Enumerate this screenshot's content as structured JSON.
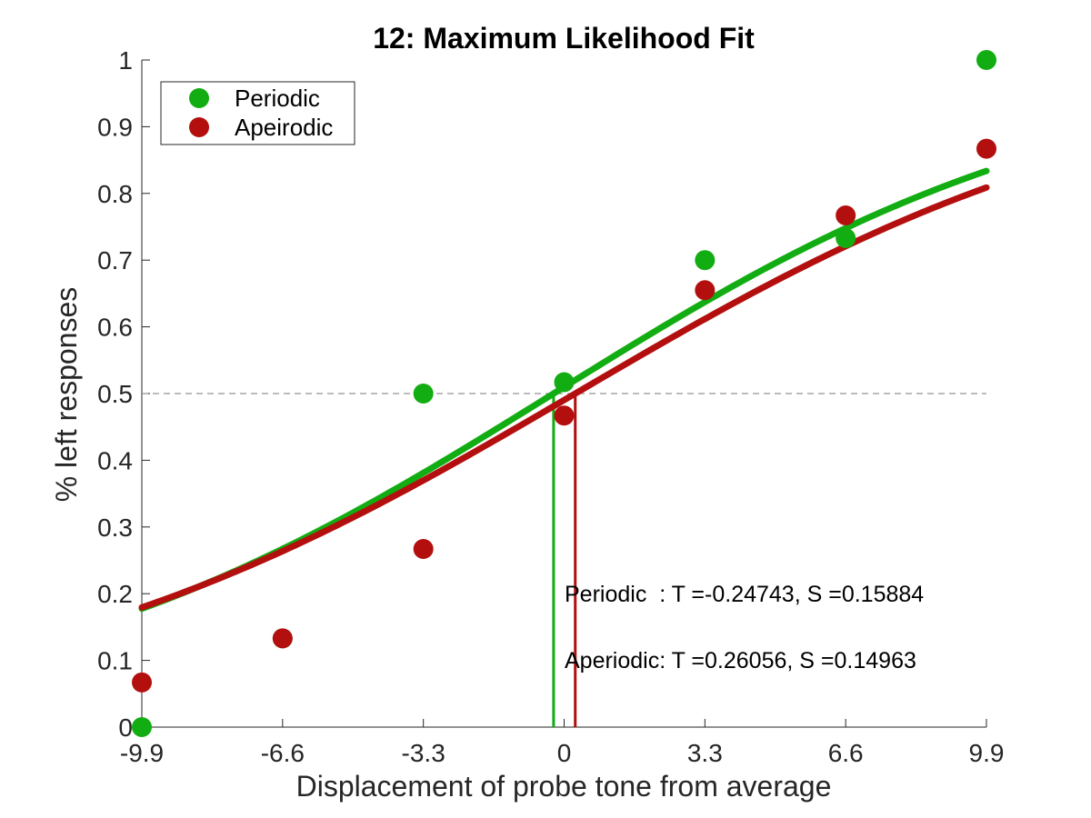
{
  "chart_data": {
    "type": "scatter",
    "title": "12: Maximum Likelihood Fit",
    "xlabel": "Displacement of probe tone from average",
    "ylabel": "% left responses",
    "xlim": [
      -9.9,
      9.9
    ],
    "ylim": [
      0,
      1
    ],
    "x_ticks": [
      "-9.9",
      "-6.6",
      "-3.3",
      "0",
      "3.3",
      "6.6",
      "9.9"
    ],
    "y_ticks": [
      "0",
      "0.1",
      "0.2",
      "0.3",
      "0.4",
      "0.5",
      "0.6",
      "0.7",
      "0.8",
      "0.9",
      "1"
    ],
    "grid": false,
    "legend_position": "top-left",
    "reference_line_y": 0.5,
    "series": [
      {
        "name": "Periodic",
        "color": "#12AD12",
        "x": [
          -9.9,
          -6.6,
          -3.3,
          0,
          3.3,
          6.6,
          9.9
        ],
        "y": [
          0.0,
          0.133,
          0.5,
          0.517,
          0.7,
          0.733,
          1.0
        ],
        "fit": {
          "threshold": -0.24743,
          "slope": 0.15884
        }
      },
      {
        "name": "Apeirodic",
        "color": "#B30F0F",
        "x": [
          -9.9,
          -6.6,
          -3.3,
          0,
          3.3,
          6.6,
          9.9
        ],
        "y": [
          0.067,
          0.133,
          0.267,
          0.467,
          0.655,
          0.767,
          0.867
        ],
        "fit": {
          "threshold": 0.26056,
          "slope": 0.14963
        }
      }
    ],
    "annotations": [
      "Periodic  : T =-0.24743, S =0.15884",
      "Aperiodic: T =0.26056, S =0.14963"
    ]
  }
}
